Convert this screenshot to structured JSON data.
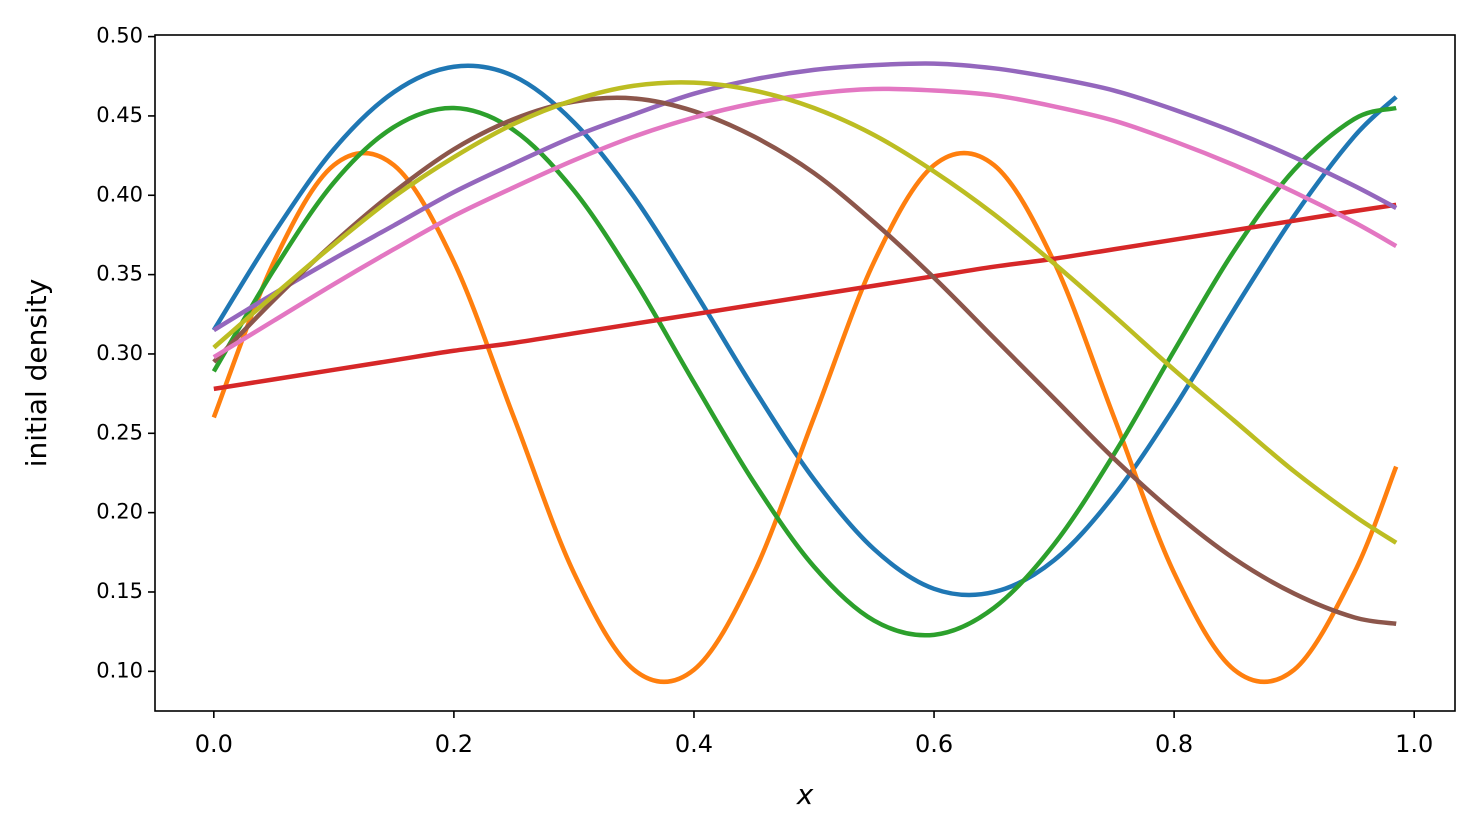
{
  "chart_data": {
    "type": "line",
    "xlabel": "x",
    "ylabel": "initial density",
    "x": [
      0,
      0.05,
      0.1,
      0.15,
      0.2,
      0.25,
      0.3,
      0.35,
      0.4,
      0.45,
      0.5,
      0.55,
      0.6,
      0.65,
      0.7,
      0.75,
      0.8,
      0.85,
      0.9,
      0.95,
      0.985
    ],
    "series": [
      {
        "color": "#1f77b4",
        "values": [
          0.315,
          0.376,
          0.429,
          0.465,
          0.481,
          0.475,
          0.446,
          0.399,
          0.34,
          0.278,
          0.221,
          0.177,
          0.152,
          0.15,
          0.17,
          0.211,
          0.266,
          0.328,
          0.387,
          0.437,
          0.462
        ]
      },
      {
        "color": "#ff7f0e",
        "values": [
          0.26,
          0.358,
          0.419,
          0.419,
          0.358,
          0.26,
          0.162,
          0.101,
          0.101,
          0.162,
          0.26,
          0.358,
          0.419,
          0.419,
          0.358,
          0.26,
          0.162,
          0.101,
          0.101,
          0.162,
          0.229
        ]
      },
      {
        "color": "#2ca02c",
        "values": [
          0.289,
          0.353,
          0.408,
          0.443,
          0.455,
          0.441,
          0.403,
          0.347,
          0.282,
          0.219,
          0.166,
          0.132,
          0.123,
          0.14,
          0.18,
          0.237,
          0.302,
          0.365,
          0.416,
          0.448,
          0.455
        ]
      },
      {
        "color": "#d62728",
        "values": [
          0.278,
          0.284,
          0.29,
          0.296,
          0.302,
          0.307,
          0.313,
          0.319,
          0.325,
          0.331,
          0.337,
          0.343,
          0.349,
          0.355,
          0.36,
          0.366,
          0.372,
          0.378,
          0.384,
          0.39,
          0.394
        ]
      },
      {
        "color": "#9467bd",
        "values": [
          0.315,
          0.338,
          0.36,
          0.381,
          0.402,
          0.42,
          0.437,
          0.451,
          0.464,
          0.473,
          0.479,
          0.482,
          0.483,
          0.48,
          0.474,
          0.466,
          0.454,
          0.44,
          0.424,
          0.406,
          0.392
        ]
      },
      {
        "color": "#8c564b",
        "values": [
          0.295,
          0.334,
          0.37,
          0.402,
          0.429,
          0.448,
          0.459,
          0.461,
          0.453,
          0.437,
          0.414,
          0.383,
          0.348,
          0.31,
          0.272,
          0.234,
          0.2,
          0.171,
          0.149,
          0.134,
          0.13
        ]
      },
      {
        "color": "#e377c2",
        "values": [
          0.298,
          0.321,
          0.344,
          0.366,
          0.387,
          0.405,
          0.422,
          0.437,
          0.449,
          0.458,
          0.464,
          0.467,
          0.466,
          0.463,
          0.456,
          0.447,
          0.434,
          0.419,
          0.402,
          0.383,
          0.368
        ]
      },
      {
        "color": "#bcbd22",
        "values": [
          0.304,
          0.337,
          0.369,
          0.399,
          0.424,
          0.445,
          0.46,
          0.469,
          0.471,
          0.466,
          0.455,
          0.438,
          0.415,
          0.388,
          0.357,
          0.324,
          0.29,
          0.258,
          0.226,
          0.198,
          0.181
        ]
      }
    ],
    "xlim": [
      -0.049,
      1.034
    ],
    "xticks": [
      {
        "value": 0,
        "label": "0.0"
      },
      0.2,
      0.4,
      0.6,
      0.8,
      {
        "value": 1,
        "label": "1.0"
      }
    ],
    "ylim": [
      0.075,
      0.501
    ],
    "yticks": [
      {
        "value": 0.1,
        "label": "0.10"
      },
      0.15,
      {
        "value": 0.2,
        "label": "0.20"
      },
      0.25,
      {
        "value": 0.3,
        "label": "0.30"
      },
      0.35,
      {
        "value": 0.4,
        "label": "0.40"
      },
      0.45,
      {
        "value": 0.5,
        "label": "0.50"
      }
    ],
    "grid": false
  }
}
